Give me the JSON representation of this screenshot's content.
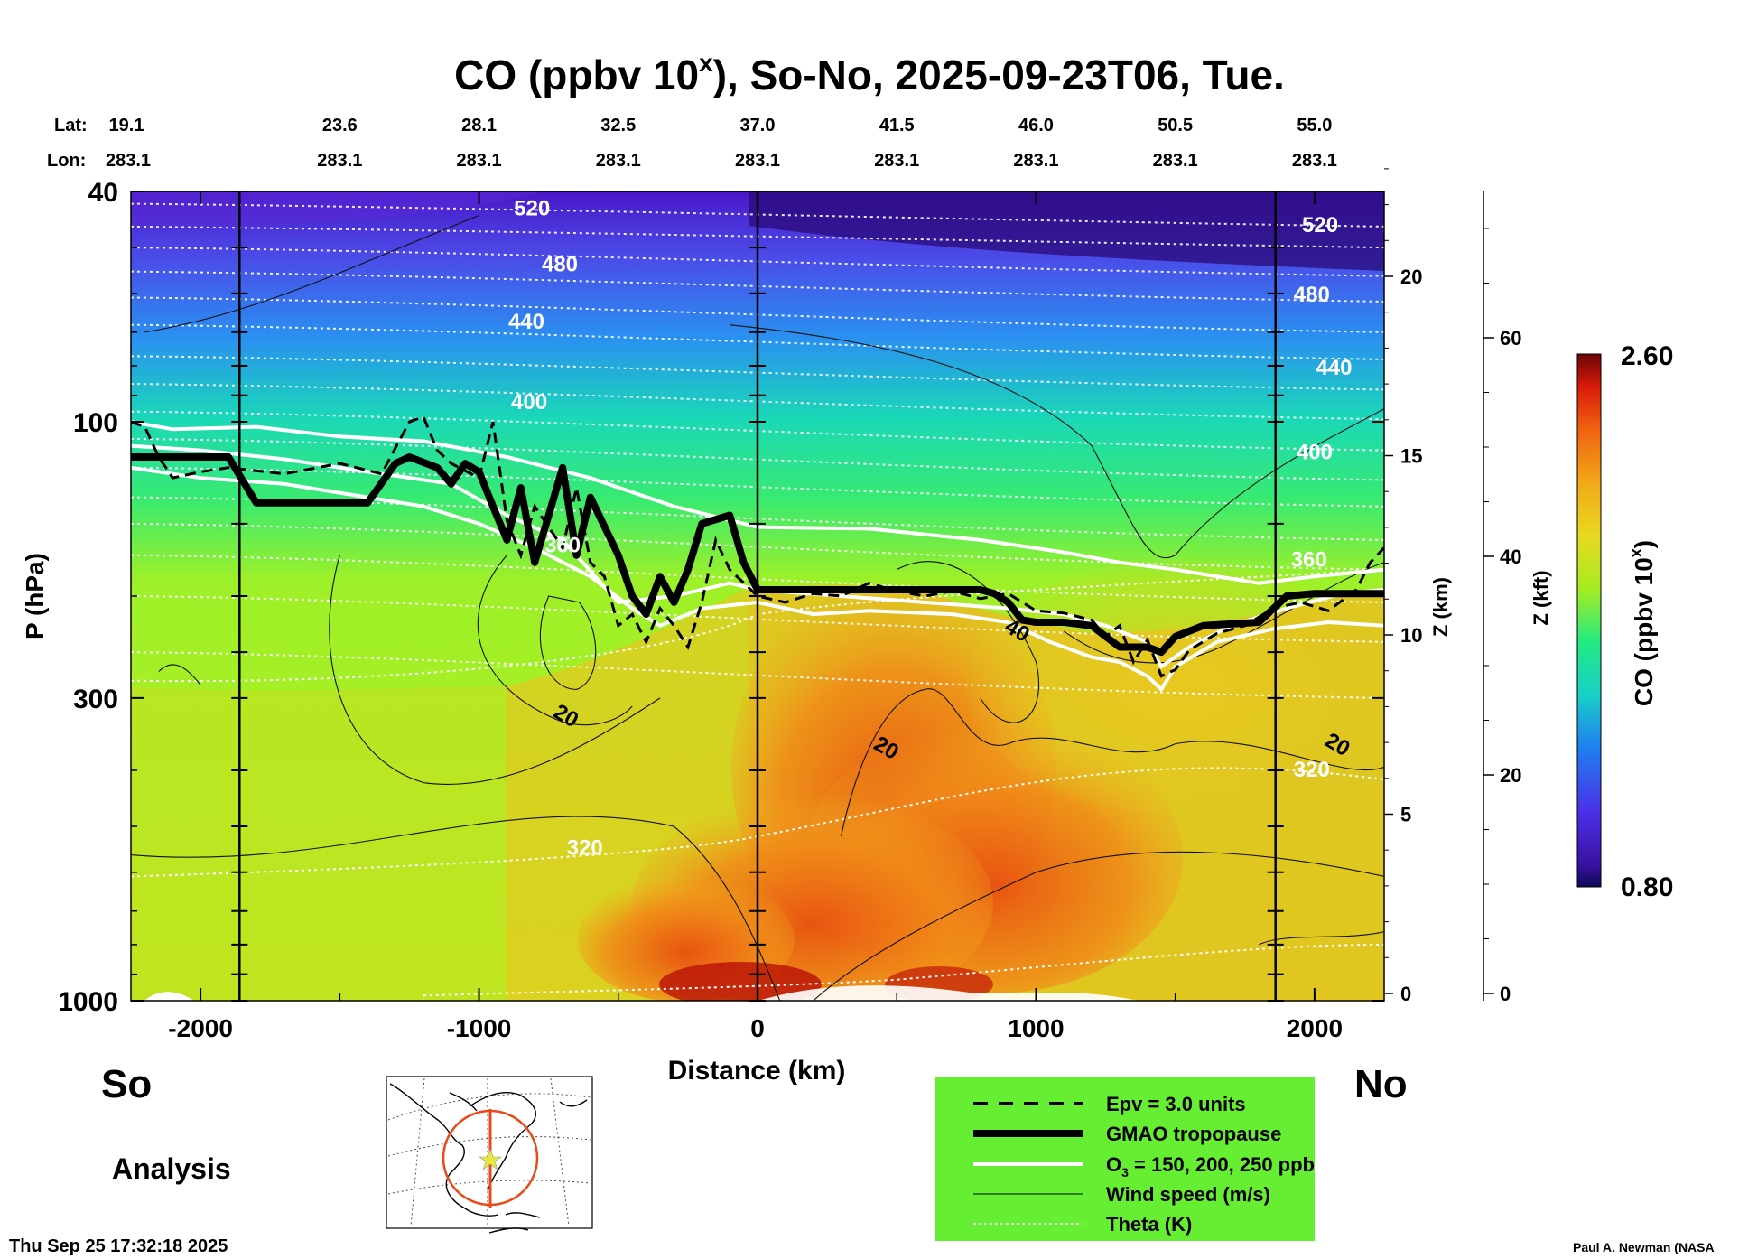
{
  "chart_data": {
    "type": "heatmap",
    "title": "CO (ppbv 10",
    "title_sup": "x",
    "title_rest": "), So-No, 2025-09-23T06, Tue.",
    "xlabel": "Distance (km)",
    "ylabel": "P (hPa)",
    "y2label": "Z (km)",
    "y3label": "Z (kft)",
    "xlim": [
      -2250,
      2250
    ],
    "ylim": [
      1000,
      40
    ],
    "x_ticks": [
      -2000,
      -1000,
      0,
      1000,
      2000
    ],
    "x_tick_labels": [
      "-2000",
      "-1000",
      "0",
      "1000",
      "2000"
    ],
    "y_ticks": [
      40,
      100,
      300,
      1000
    ],
    "y_tick_labels": [
      "40",
      "100",
      "300",
      "1000"
    ],
    "z_km_ticks": [
      0,
      5,
      10,
      15,
      20
    ],
    "z_km_labels": [
      "0",
      "5",
      "10",
      "15",
      "20"
    ],
    "z_kft_ticks": [
      0,
      20,
      40,
      60
    ],
    "z_kft_labels": [
      "0",
      "20",
      "40",
      "60"
    ],
    "lat_label": "Lat:",
    "lon_label": "Lon:",
    "lat_values": [
      "19.1",
      "23.6",
      "28.1",
      "32.5",
      "37.0",
      "41.5",
      "46.0",
      "50.5",
      "55.0"
    ],
    "lon_values": [
      "283.1",
      "283.1",
      "283.1",
      "283.1",
      "283.1",
      "283.1",
      "283.1",
      "283.1",
      "283.1"
    ],
    "colorbar": {
      "min_label": "0.80",
      "max_label": "2.60",
      "label": "CO (ppbv 10",
      "label_sup": "x",
      "label_end": ")",
      "min": 0.8,
      "max": 2.6
    },
    "theta_labels": [
      {
        "text": "520",
        "x": -810,
        "p": 44
      },
      {
        "text": "480",
        "x": -710,
        "p": 55
      },
      {
        "text": "440",
        "x": -830,
        "p": 69
      },
      {
        "text": "400",
        "x": -820,
        "p": 95
      },
      {
        "text": "360",
        "x": -700,
        "p": 168
      },
      {
        "text": "320",
        "x": -620,
        "p": 560
      },
      {
        "text": "520",
        "x": 2020,
        "p": 47
      },
      {
        "text": "480",
        "x": 1990,
        "p": 62
      },
      {
        "text": "440",
        "x": 2070,
        "p": 83
      },
      {
        "text": "400",
        "x": 2000,
        "p": 116
      },
      {
        "text": "360",
        "x": 1980,
        "p": 178
      },
      {
        "text": "320",
        "x": 1990,
        "p": 410
      }
    ],
    "wind_labels": [
      {
        "text": "20",
        "x": -700,
        "p": 330
      },
      {
        "text": "20",
        "x": 450,
        "p": 375
      },
      {
        "text": "40",
        "x": 920,
        "p": 235
      },
      {
        "text": "20",
        "x": 2070,
        "p": 370
      }
    ],
    "vertical_markers_km": [
      -1860,
      0,
      1860
    ],
    "region_left": "So",
    "region_right": "No"
  },
  "mode_label": "Analysis",
  "legend": {
    "items": [
      "Epv = 3.0 units",
      "GMAO tropopause",
      "O",
      "Wind speed (m/s)",
      "Theta (K)"
    ],
    "o3_sub": "3",
    "o3_rest": " = 150, 200, 250 ppb"
  },
  "timestamp": "Thu Sep 25 17:32:18 2025",
  "credit": "Paul A. Newman (NASA",
  "colors": {
    "legend_bg": "#66ee33",
    "map_track": "#e84a1a",
    "map_star": "#e8e83a"
  }
}
